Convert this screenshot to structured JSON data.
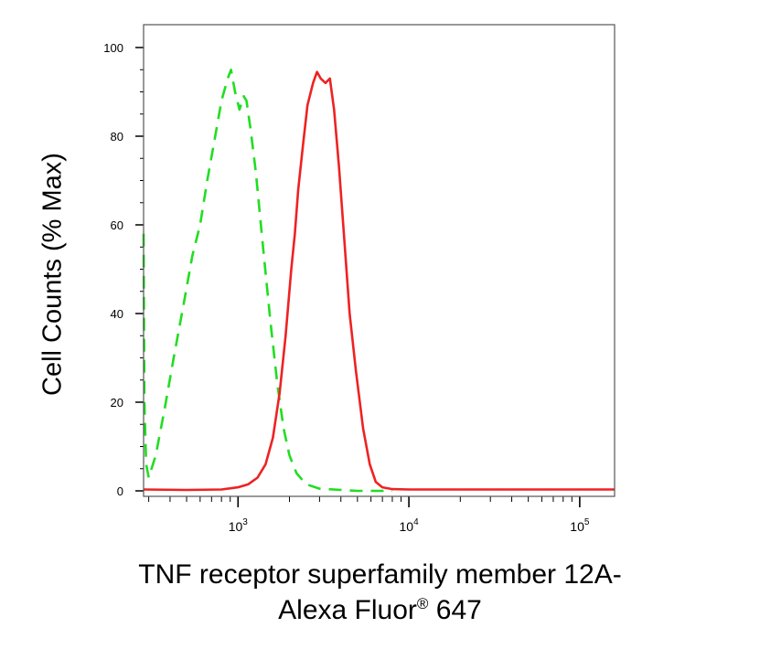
{
  "chart_data": {
    "type": "line",
    "ylabel": "Cell Counts (% Max)",
    "xlabel_line1": "TNF receptor superfamily member 12A-",
    "xlabel_line2_text": "Alexa Fluor",
    "xlabel_line2_mark": "®",
    "xlabel_line2_suffix": " 647",
    "x_scale": "log",
    "xlim": [
      280,
      160000
    ],
    "ylim": [
      0,
      100
    ],
    "y_ticks": [
      0,
      20,
      40,
      60,
      80,
      100
    ],
    "x_ticks": [
      {
        "value": 1000,
        "base": "10",
        "exp": "3"
      },
      {
        "value": 10000,
        "base": "10",
        "exp": "4"
      },
      {
        "value": 100000,
        "base": "10",
        "exp": "5"
      }
    ],
    "grid": false,
    "series": [
      {
        "style": "dashed",
        "color": "#22dd22",
        "points": [
          [
            280,
            58
          ],
          [
            283,
            20
          ],
          [
            290,
            6
          ],
          [
            300,
            3
          ],
          [
            330,
            8
          ],
          [
            370,
            18
          ],
          [
            420,
            30
          ],
          [
            480,
            42
          ],
          [
            540,
            53
          ],
          [
            600,
            60
          ],
          [
            660,
            70
          ],
          [
            720,
            78
          ],
          [
            800,
            88
          ],
          [
            870,
            93
          ],
          [
            910,
            95
          ],
          [
            960,
            90
          ],
          [
            1020,
            86
          ],
          [
            1080,
            89
          ],
          [
            1120,
            88
          ],
          [
            1180,
            82
          ],
          [
            1270,
            72
          ],
          [
            1400,
            55
          ],
          [
            1550,
            38
          ],
          [
            1700,
            24
          ],
          [
            1850,
            14
          ],
          [
            2000,
            8
          ],
          [
            2200,
            4
          ],
          [
            2500,
            1.5
          ],
          [
            3000,
            0.5
          ],
          [
            5000,
            0
          ],
          [
            8000,
            0
          ]
        ]
      },
      {
        "style": "solid",
        "color": "#ee2222",
        "points": [
          [
            280,
            0.3
          ],
          [
            500,
            0.2
          ],
          [
            800,
            0.3
          ],
          [
            1000,
            0.8
          ],
          [
            1150,
            1.5
          ],
          [
            1300,
            3
          ],
          [
            1450,
            6
          ],
          [
            1600,
            12
          ],
          [
            1750,
            22
          ],
          [
            1900,
            35
          ],
          [
            2050,
            50
          ],
          [
            2150,
            58
          ],
          [
            2250,
            68
          ],
          [
            2400,
            78
          ],
          [
            2550,
            87
          ],
          [
            2750,
            92
          ],
          [
            2900,
            94.5
          ],
          [
            3050,
            93
          ],
          [
            3250,
            92
          ],
          [
            3450,
            93
          ],
          [
            3650,
            86
          ],
          [
            3900,
            73
          ],
          [
            4200,
            56
          ],
          [
            4500,
            40
          ],
          [
            4900,
            27
          ],
          [
            5400,
            14
          ],
          [
            5900,
            6
          ],
          [
            6400,
            2
          ],
          [
            7000,
            0.8
          ],
          [
            8000,
            0.4
          ],
          [
            10000,
            0.3
          ],
          [
            30000,
            0.3
          ],
          [
            160000,
            0.3
          ]
        ]
      }
    ]
  }
}
